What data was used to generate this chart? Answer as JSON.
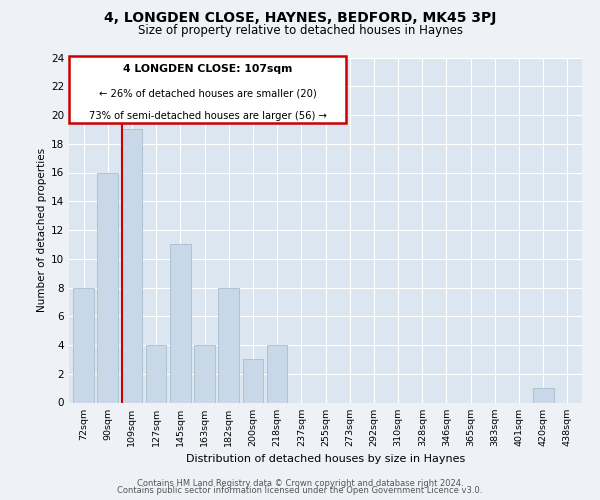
{
  "title": "4, LONGDEN CLOSE, HAYNES, BEDFORD, MK45 3PJ",
  "subtitle": "Size of property relative to detached houses in Haynes",
  "xlabel": "Distribution of detached houses by size in Haynes",
  "ylabel": "Number of detached properties",
  "categories": [
    "72sqm",
    "90sqm",
    "109sqm",
    "127sqm",
    "145sqm",
    "163sqm",
    "182sqm",
    "200sqm",
    "218sqm",
    "237sqm",
    "255sqm",
    "273sqm",
    "292sqm",
    "310sqm",
    "328sqm",
    "346sqm",
    "365sqm",
    "383sqm",
    "401sqm",
    "420sqm",
    "438sqm"
  ],
  "values": [
    8,
    16,
    19,
    4,
    11,
    4,
    8,
    3,
    4,
    0,
    0,
    0,
    0,
    0,
    0,
    0,
    0,
    0,
    0,
    1,
    0
  ],
  "bar_color": "#c8d8e8",
  "bar_edge_color": "#a8bece",
  "highlight_index": 2,
  "highlight_line_color": "#cc0000",
  "annotation_title": "4 LONGDEN CLOSE: 107sqm",
  "annotation_line1": "← 26% of detached houses are smaller (20)",
  "annotation_line2": "73% of semi-detached houses are larger (56) →",
  "annotation_box_color": "#ffffff",
  "annotation_box_edge_color": "#cc0000",
  "ylim": [
    0,
    24
  ],
  "yticks": [
    0,
    2,
    4,
    6,
    8,
    10,
    12,
    14,
    16,
    18,
    20,
    22,
    24
  ],
  "background_color": "#eef2f7",
  "plot_bg_color": "#dce6f0",
  "footer_line1": "Contains HM Land Registry data © Crown copyright and database right 2024.",
  "footer_line2": "Contains public sector information licensed under the Open Government Licence v3.0."
}
